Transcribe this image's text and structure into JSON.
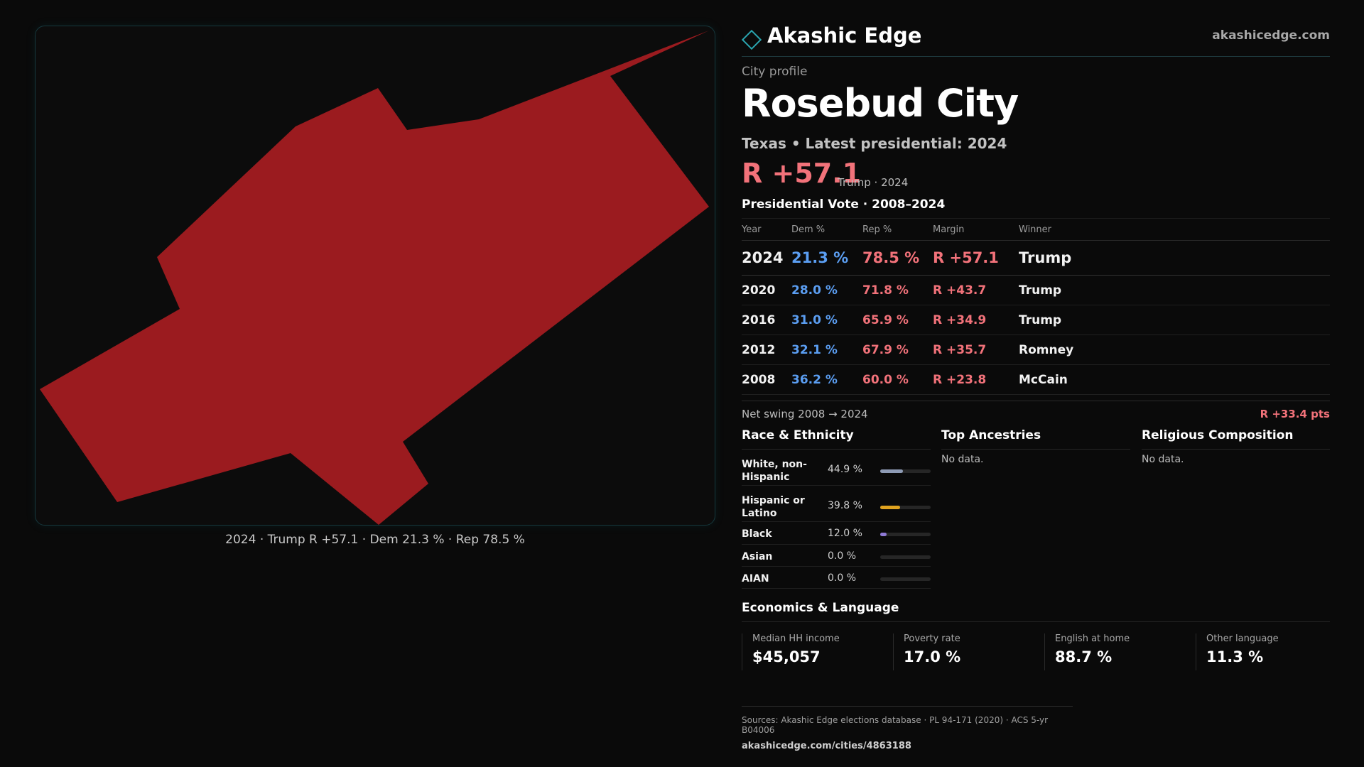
{
  "brand": {
    "name": "Akashic Edge",
    "url": "akashicedge.com"
  },
  "profile": {
    "kicker": "City profile",
    "city": "Rosebud City",
    "subtitle": "Texas • Latest presidential: 2024",
    "margin_big": "R +57.1",
    "margin_note": "Trump · 2024"
  },
  "map": {
    "caption": "2024 · Trump R +57.1 · Dem 21.3 % · Rep 78.5 %",
    "fill_color": "#9b1b1f"
  },
  "presidential": {
    "heading": "Presidential Vote · 2008–2024",
    "columns": [
      "Year",
      "Dem %",
      "Rep %",
      "Margin",
      "Winner"
    ],
    "rows": [
      {
        "year": "2024",
        "dem": "21.3 %",
        "rep": "78.5 %",
        "margin": "R +57.1",
        "winner": "Trump"
      },
      {
        "year": "2020",
        "dem": "28.0 %",
        "rep": "71.8 %",
        "margin": "R +43.7",
        "winner": "Trump"
      },
      {
        "year": "2016",
        "dem": "31.0 %",
        "rep": "65.9 %",
        "margin": "R +34.9",
        "winner": "Trump"
      },
      {
        "year": "2012",
        "dem": "32.1 %",
        "rep": "67.9 %",
        "margin": "R +35.7",
        "winner": "Romney"
      },
      {
        "year": "2008",
        "dem": "36.2 %",
        "rep": "60.0 %",
        "margin": "R +23.8",
        "winner": "McCain"
      }
    ],
    "swing_label": "Net swing 2008 → 2024",
    "swing_value": "R +33.4 pts"
  },
  "race": {
    "title": "Race & Ethnicity",
    "items": [
      {
        "label": "White, non-Hispanic",
        "pct": "44.9 %",
        "value": 44.9,
        "color": "#8e9bb5"
      },
      {
        "label": "Hispanic or Latino",
        "pct": "39.8 %",
        "value": 39.8,
        "color": "#e0a31f"
      },
      {
        "label": "Black",
        "pct": "12.0 %",
        "value": 12.0,
        "color": "#8f7ad6"
      },
      {
        "label": "Asian",
        "pct": "0.0 %",
        "value": 0.0,
        "color": "#5aa0d8"
      },
      {
        "label": "AIAN",
        "pct": "0.0 %",
        "value": 0.0,
        "color": "#6fb58a"
      }
    ]
  },
  "ancestries": {
    "title": "Top Ancestries",
    "empty": "No data."
  },
  "religion": {
    "title": "Religious Composition",
    "empty": "No data."
  },
  "economics": {
    "title": "Economics & Language",
    "items": [
      {
        "label": "Median HH income",
        "value": "$45,057"
      },
      {
        "label": "Poverty rate",
        "value": "17.0 %"
      },
      {
        "label": "English at home",
        "value": "88.7 %"
      },
      {
        "label": "Other language",
        "value": "11.3 %"
      }
    ]
  },
  "sources": {
    "text": "Sources: Akashic Edge elections database · PL 94-171 (2020) · ACS 5-yr B04006",
    "url": "akashicedge.com/cities/4863188"
  }
}
